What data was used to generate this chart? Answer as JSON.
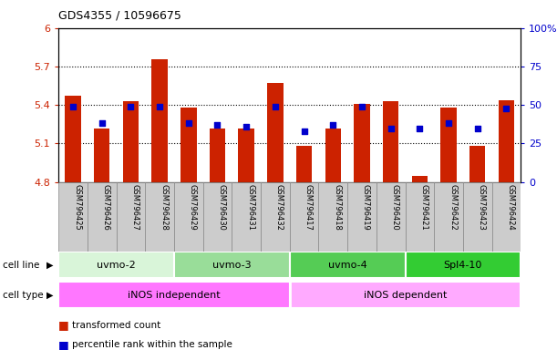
{
  "title": "GDS4355 / 10596675",
  "samples": [
    "GSM796425",
    "GSM796426",
    "GSM796427",
    "GSM796428",
    "GSM796429",
    "GSM796430",
    "GSM796431",
    "GSM796432",
    "GSM796417",
    "GSM796418",
    "GSM796419",
    "GSM796420",
    "GSM796421",
    "GSM796422",
    "GSM796423",
    "GSM796424"
  ],
  "bar_values": [
    5.47,
    5.22,
    5.43,
    5.76,
    5.38,
    5.22,
    5.22,
    5.57,
    5.08,
    5.22,
    5.41,
    5.43,
    4.85,
    5.38,
    5.08,
    5.44
  ],
  "percentile_values": [
    49,
    38,
    49,
    49,
    38,
    37,
    36,
    49,
    33,
    37,
    49,
    35,
    35,
    38,
    35,
    48
  ],
  "ymin": 4.8,
  "ymax": 6.0,
  "yticks": [
    4.8,
    5.1,
    5.4,
    5.7,
    6.0
  ],
  "ytick_labels": [
    "4.8",
    "5.1",
    "5.4",
    "5.7",
    "6"
  ],
  "yright_ticks": [
    0,
    25,
    50,
    75,
    100
  ],
  "yright_labels": [
    "0",
    "25",
    "50",
    "75",
    "100%"
  ],
  "hlines": [
    5.1,
    5.4,
    5.7
  ],
  "bar_color": "#cc2200",
  "dot_color": "#0000cc",
  "left_tick_color": "#cc2200",
  "right_tick_color": "#0000cc",
  "cell_lines": [
    {
      "label": "uvmo-2",
      "start": 0,
      "end": 4,
      "color": "#d9f5d9"
    },
    {
      "label": "uvmo-3",
      "start": 4,
      "end": 8,
      "color": "#99dd99"
    },
    {
      "label": "uvmo-4",
      "start": 8,
      "end": 12,
      "color": "#55cc55"
    },
    {
      "label": "Spl4-10",
      "start": 12,
      "end": 16,
      "color": "#33cc33"
    }
  ],
  "cell_types": [
    {
      "label": "iNOS independent",
      "start": 0,
      "end": 8,
      "color": "#ff77ff"
    },
    {
      "label": "iNOS dependent",
      "start": 8,
      "end": 16,
      "color": "#ffaaff"
    }
  ],
  "cell_line_row_label": "cell line",
  "cell_type_row_label": "cell type",
  "legend_items": [
    {
      "color": "#cc2200",
      "label": "transformed count"
    },
    {
      "color": "#0000cc",
      "label": "percentile rank within the sample"
    }
  ],
  "bar_width": 0.55,
  "sample_box_color": "#cccccc",
  "sample_box_edge": "#888888"
}
